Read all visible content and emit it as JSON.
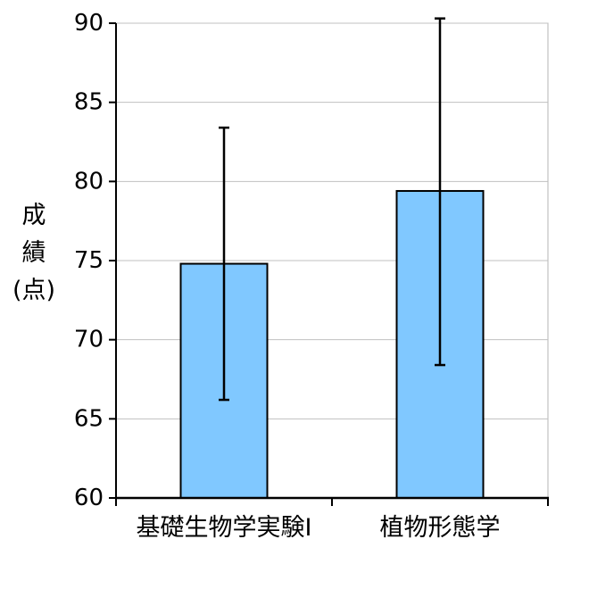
{
  "chart_data": {
    "type": "bar",
    "categories": [
      "基礎生物学実験I",
      "植物形態学"
    ],
    "values": [
      74.8,
      79.4
    ],
    "error_bars": [
      {
        "low": 66.2,
        "high": 83.4
      },
      {
        "low": 68.4,
        "high": 90.3
      }
    ],
    "ylabel_lines": [
      "成",
      "績",
      "(点)"
    ],
    "ylim": [
      60,
      90
    ],
    "yticks": [
      60,
      65,
      70,
      75,
      80,
      85,
      90
    ],
    "grid": true,
    "bar_color": "#80C8FF",
    "bar_edge_color": "#000000"
  }
}
